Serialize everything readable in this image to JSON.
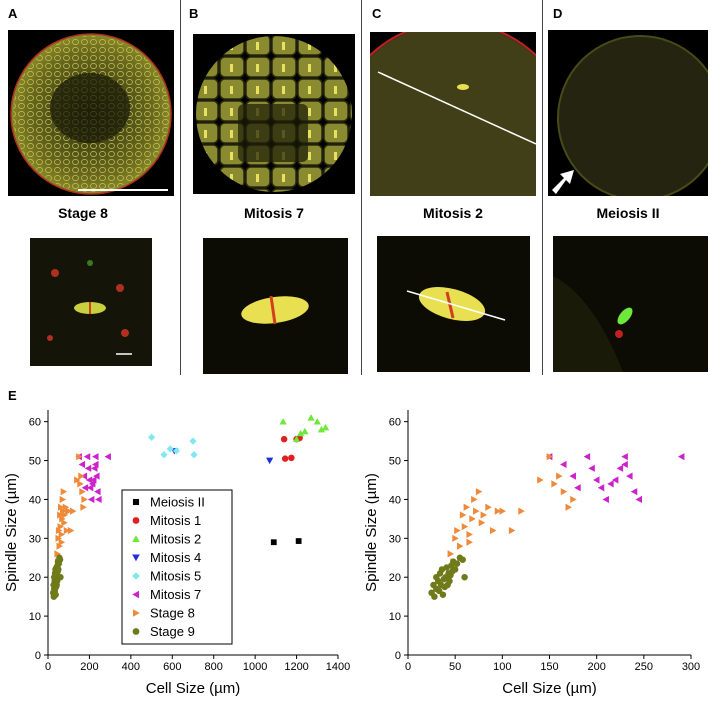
{
  "panels": {
    "A": {
      "label": "A",
      "caption": "Stage 8"
    },
    "B": {
      "label": "B",
      "caption": "Mitosis 7"
    },
    "C": {
      "label": "C",
      "caption": "Mitosis 2"
    },
    "D": {
      "label": "D",
      "caption": "Meiosis II"
    },
    "E": {
      "label": "E"
    }
  },
  "colors": {
    "Meiosis II": "#000000",
    "Mitosis 1": "#e0201f",
    "Mitosis 2": "#6ee83a",
    "Mitosis 4": "#1f2fd8",
    "Mitosis 5": "#7fe8f0",
    "Mitosis 7": "#cc22cc",
    "Stage 8": "#ee8a3a",
    "Stage 9": "#6f7a1a"
  },
  "chart_data": [
    {
      "type": "scatter",
      "title": "",
      "xlabel": "Cell Size (µm)",
      "ylabel": "Spindle Size (µm)",
      "xlim": [
        0,
        1400
      ],
      "ylim": [
        0,
        63
      ],
      "xticks": [
        0,
        200,
        400,
        600,
        800,
        1000,
        1200,
        1400
      ],
      "yticks": [
        0,
        10,
        20,
        30,
        40,
        50,
        60
      ],
      "legend": "inset-center",
      "series": [
        {
          "name": "Meiosis II",
          "marker": "square",
          "points": [
            [
              1090,
              29
            ],
            [
              1210,
              29.3
            ]
          ]
        },
        {
          "name": "Mitosis 1",
          "marker": "circle",
          "points": [
            [
              1140,
              55.5
            ],
            [
              1145,
              50.5
            ],
            [
              1175,
              50.7
            ],
            [
              1200,
              55.5
            ],
            [
              1215,
              55.8
            ]
          ]
        },
        {
          "name": "Mitosis 2",
          "marker": "triangle-up",
          "points": [
            [
              1135,
              60
            ],
            [
              1200,
              55.5
            ],
            [
              1220,
              57
            ],
            [
              1240,
              57.5
            ],
            [
              1270,
              61
            ],
            [
              1300,
              60
            ],
            [
              1320,
              58
            ],
            [
              1340,
              58.5
            ]
          ]
        },
        {
          "name": "Mitosis 4",
          "marker": "triangle-down",
          "points": [
            [
              610,
              52.5
            ],
            [
              1070,
              50
            ]
          ]
        },
        {
          "name": "Mitosis 5",
          "marker": "diamond",
          "points": [
            [
              500,
              56
            ],
            [
              560,
              51.5
            ],
            [
              590,
              53
            ],
            [
              620,
              52.5
            ],
            [
              700,
              55
            ],
            [
              705,
              51.5
            ]
          ]
        },
        {
          "name": "Mitosis 7",
          "marker": "triangle-left",
          "points": [
            [
              150,
              51
            ],
            [
              165,
              49
            ],
            [
              175,
              46
            ],
            [
              180,
              43
            ],
            [
              190,
              51
            ],
            [
              195,
              48
            ],
            [
              200,
              45
            ],
            [
              205,
              43
            ],
            [
              210,
              40
            ],
            [
              215,
              44
            ],
            [
              220,
              45
            ],
            [
              225,
              48
            ],
            [
              230,
              49
            ],
            [
              230,
              51
            ],
            [
              235,
              46
            ],
            [
              240,
              42
            ],
            [
              245,
              40
            ],
            [
              290,
              51
            ]
          ]
        },
        {
          "name": "Stage 8",
          "marker": "triangle-right",
          "points": [
            [
              45,
              26
            ],
            [
              48,
              24
            ],
            [
              50,
              30
            ],
            [
              52,
              32
            ],
            [
              55,
              28
            ],
            [
              58,
              36
            ],
            [
              60,
              33
            ],
            [
              62,
              38
            ],
            [
              65,
              31
            ],
            [
              65,
              29
            ],
            [
              68,
              35
            ],
            [
              70,
              40
            ],
            [
              72,
              37
            ],
            [
              75,
              42
            ],
            [
              78,
              34
            ],
            [
              80,
              36
            ],
            [
              85,
              38
            ],
            [
              90,
              32
            ],
            [
              95,
              37
            ],
            [
              100,
              37
            ],
            [
              110,
              32
            ],
            [
              120,
              37
            ],
            [
              140,
              45
            ],
            [
              150,
              51
            ],
            [
              155,
              44
            ],
            [
              160,
              46
            ],
            [
              165,
              42
            ],
            [
              170,
              38
            ],
            [
              175,
              40
            ]
          ]
        },
        {
          "name": "Stage 9",
          "marker": "circle",
          "points": [
            [
              25,
              16
            ],
            [
              27,
              18
            ],
            [
              28,
              15
            ],
            [
              30,
              17
            ],
            [
              30,
              20
            ],
            [
              32,
              19
            ],
            [
              33,
              16.5
            ],
            [
              34,
              21
            ],
            [
              35,
              18
            ],
            [
              36,
              22
            ],
            [
              37,
              15.5
            ],
            [
              38,
              19.5
            ],
            [
              39,
              17.5
            ],
            [
              40,
              20
            ],
            [
              41,
              22.5
            ],
            [
              42,
              18
            ],
            [
              43,
              21
            ],
            [
              44,
              19
            ],
            [
              45,
              20.5
            ],
            [
              46,
              23
            ],
            [
              47,
              21.5
            ],
            [
              48,
              24
            ],
            [
              50,
              22
            ],
            [
              52,
              23.5
            ],
            [
              55,
              25
            ],
            [
              58,
              24.5
            ],
            [
              60,
              20
            ]
          ]
        }
      ]
    },
    {
      "type": "scatter",
      "title": "",
      "xlabel": "Cell Size (µm)",
      "ylabel": "Spindle Size (µm)",
      "xlim": [
        0,
        300
      ],
      "ylim": [
        0,
        63
      ],
      "xticks": [
        0,
        50,
        100,
        150,
        200,
        250,
        300
      ],
      "yticks": [
        0,
        10,
        20,
        30,
        40,
        50,
        60
      ],
      "legend": "none",
      "series": [
        {
          "name": "Mitosis 7",
          "marker": "triangle-left",
          "points": [
            [
              150,
              51
            ],
            [
              165,
              49
            ],
            [
              175,
              46
            ],
            [
              180,
              43
            ],
            [
              190,
              51
            ],
            [
              195,
              48
            ],
            [
              200,
              45
            ],
            [
              205,
              43
            ],
            [
              210,
              40
            ],
            [
              215,
              44
            ],
            [
              220,
              45
            ],
            [
              225,
              48
            ],
            [
              230,
              49
            ],
            [
              230,
              51
            ],
            [
              235,
              46
            ],
            [
              240,
              42
            ],
            [
              245,
              40
            ],
            [
              290,
              51
            ]
          ]
        },
        {
          "name": "Stage 8",
          "marker": "triangle-right",
          "points": [
            [
              45,
              26
            ],
            [
              48,
              24
            ],
            [
              50,
              30
            ],
            [
              52,
              32
            ],
            [
              55,
              28
            ],
            [
              58,
              36
            ],
            [
              60,
              33
            ],
            [
              62,
              38
            ],
            [
              65,
              31
            ],
            [
              65,
              29
            ],
            [
              68,
              35
            ],
            [
              70,
              40
            ],
            [
              72,
              37
            ],
            [
              75,
              42
            ],
            [
              78,
              34
            ],
            [
              80,
              36
            ],
            [
              85,
              38
            ],
            [
              90,
              32
            ],
            [
              95,
              37
            ],
            [
              100,
              37
            ],
            [
              110,
              32
            ],
            [
              120,
              37
            ],
            [
              140,
              45
            ],
            [
              150,
              51
            ],
            [
              155,
              44
            ],
            [
              160,
              46
            ],
            [
              165,
              42
            ],
            [
              170,
              38
            ],
            [
              175,
              40
            ]
          ]
        },
        {
          "name": "Stage 9",
          "marker": "circle",
          "points": [
            [
              25,
              16
            ],
            [
              27,
              18
            ],
            [
              28,
              15
            ],
            [
              30,
              17
            ],
            [
              30,
              20
            ],
            [
              32,
              19
            ],
            [
              33,
              16.5
            ],
            [
              34,
              21
            ],
            [
              35,
              18
            ],
            [
              36,
              22
            ],
            [
              37,
              15.5
            ],
            [
              38,
              19.5
            ],
            [
              39,
              17.5
            ],
            [
              40,
              20
            ],
            [
              41,
              22.5
            ],
            [
              42,
              18
            ],
            [
              43,
              21
            ],
            [
              44,
              19
            ],
            [
              45,
              20.5
            ],
            [
              46,
              23
            ],
            [
              47,
              21.5
            ],
            [
              48,
              24
            ],
            [
              50,
              22
            ],
            [
              52,
              23.5
            ],
            [
              55,
              25
            ],
            [
              58,
              24.5
            ],
            [
              60,
              20
            ]
          ]
        }
      ]
    }
  ]
}
